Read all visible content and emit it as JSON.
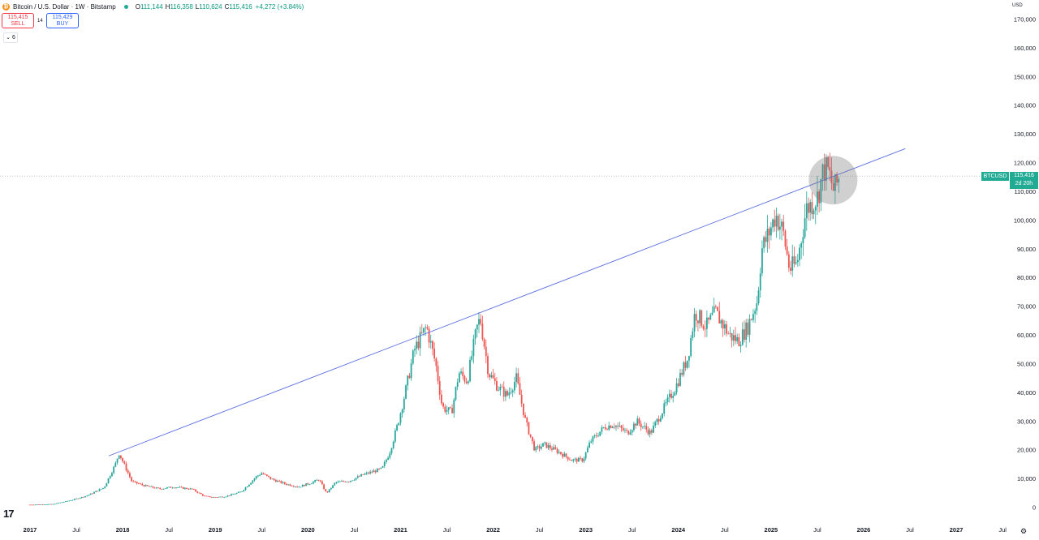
{
  "header": {
    "symbol_title": "Bitcoin / U.S. Dollar · 1W · Bitstamp",
    "logo_glyph": "₿",
    "o_label": "O",
    "o_value": "111,144",
    "h_label": "H",
    "h_value": "116,358",
    "l_label": "L",
    "l_value": "110,624",
    "c_label": "C",
    "c_value": "115,416",
    "change": "+4,272 (+3.84%)"
  },
  "trade": {
    "sell_price": "115,415",
    "sell_label": "SELL",
    "buy_price": "115,429",
    "buy_label": "BUY",
    "spread": "14",
    "indicators_toggle": "⌄ 6"
  },
  "price_scale": {
    "currency": "USD",
    "ticks": [
      "170,000",
      "160,000",
      "150,000",
      "140,000",
      "130,000",
      "120,000",
      "110,000",
      "100,000",
      "90,000",
      "80,000",
      "70,000",
      "60,000",
      "50,000",
      "40,000",
      "30,000",
      "20,000",
      "10,000",
      "0"
    ]
  },
  "time_scale": {
    "ticks": [
      "2017",
      "Jul",
      "2018",
      "Jul",
      "2019",
      "Jul",
      "2020",
      "Jul",
      "2021",
      "Jul",
      "2022",
      "Jul",
      "2023",
      "Jul",
      "2024",
      "Jul",
      "2025",
      "Jul",
      "2026",
      "Jul",
      "2027",
      "Jul"
    ]
  },
  "last_price": {
    "symbol": "BTCUSD",
    "value": "115,416",
    "countdown": "2d 20h"
  },
  "footer": {
    "logo_text": "17",
    "settings_icon": "gear-icon"
  },
  "colors": {
    "up": "#26a69a",
    "down": "#ef5350",
    "trendline": "#5b6ee1",
    "accent": "#22ab94"
  },
  "chart_data": {
    "type": "candlestick",
    "timeframe": "1W",
    "ylim": [
      0,
      175000
    ],
    "xlim": [
      2016.93,
      2028.0
    ],
    "grid": false,
    "close_series": [
      [
        2017.0,
        1000
      ],
      [
        2017.25,
        1200
      ],
      [
        2017.45,
        2600
      ],
      [
        2017.62,
        4200
      ],
      [
        2017.8,
        7000
      ],
      [
        2017.92,
        15000
      ],
      [
        2017.96,
        19000
      ],
      [
        2018.03,
        14000
      ],
      [
        2018.1,
        9000
      ],
      [
        2018.25,
        7500
      ],
      [
        2018.4,
        6500
      ],
      [
        2018.55,
        7200
      ],
      [
        2018.75,
        6400
      ],
      [
        2018.88,
        4000
      ],
      [
        2018.97,
        3600
      ],
      [
        2019.1,
        3800
      ],
      [
        2019.28,
        5500
      ],
      [
        2019.45,
        11000
      ],
      [
        2019.5,
        12000
      ],
      [
        2019.6,
        10000
      ],
      [
        2019.75,
        8300
      ],
      [
        2019.9,
        7200
      ],
      [
        2020.05,
        8800
      ],
      [
        2020.12,
        9800
      ],
      [
        2020.2,
        5000
      ],
      [
        2020.3,
        8800
      ],
      [
        2020.45,
        9300
      ],
      [
        2020.6,
        11500
      ],
      [
        2020.8,
        13500
      ],
      [
        2020.88,
        19000
      ],
      [
        2020.97,
        29000
      ],
      [
        2021.05,
        40000
      ],
      [
        2021.15,
        55000
      ],
      [
        2021.28,
        63000
      ],
      [
        2021.38,
        50000
      ],
      [
        2021.45,
        35000
      ],
      [
        2021.55,
        33000
      ],
      [
        2021.63,
        47000
      ],
      [
        2021.72,
        44000
      ],
      [
        2021.82,
        62000
      ],
      [
        2021.86,
        66000
      ],
      [
        2021.95,
        47000
      ],
      [
        2022.05,
        42000
      ],
      [
        2022.15,
        39000
      ],
      [
        2022.25,
        45000
      ],
      [
        2022.35,
        30000
      ],
      [
        2022.45,
        20000
      ],
      [
        2022.55,
        22000
      ],
      [
        2022.7,
        19500
      ],
      [
        2022.85,
        16500
      ],
      [
        2022.97,
        16600
      ],
      [
        2023.05,
        23000
      ],
      [
        2023.2,
        28000
      ],
      [
        2023.3,
        29000
      ],
      [
        2023.45,
        26000
      ],
      [
        2023.55,
        30000
      ],
      [
        2023.7,
        26000
      ],
      [
        2023.85,
        35000
      ],
      [
        2023.97,
        42000
      ],
      [
        2024.1,
        52000
      ],
      [
        2024.18,
        68000
      ],
      [
        2024.3,
        63000
      ],
      [
        2024.4,
        68000
      ],
      [
        2024.55,
        60000
      ],
      [
        2024.65,
        58000
      ],
      [
        2024.75,
        63000
      ],
      [
        2024.85,
        72000
      ],
      [
        2024.9,
        90000
      ],
      [
        2024.97,
        95000
      ],
      [
        2025.05,
        102000
      ],
      [
        2025.13,
        96000
      ],
      [
        2025.2,
        83000
      ],
      [
        2025.28,
        85000
      ],
      [
        2025.38,
        104000
      ],
      [
        2025.5,
        108000
      ],
      [
        2025.57,
        118000
      ],
      [
        2025.62,
        117000
      ],
      [
        2025.68,
        110000
      ],
      [
        2025.74,
        115416
      ]
    ],
    "trendline": {
      "from": [
        2017.85,
        18000
      ],
      "to": [
        2026.45,
        125000
      ]
    },
    "last_price_line": 115416,
    "highlight_circle": {
      "center": [
        2025.67,
        114000
      ]
    }
  }
}
